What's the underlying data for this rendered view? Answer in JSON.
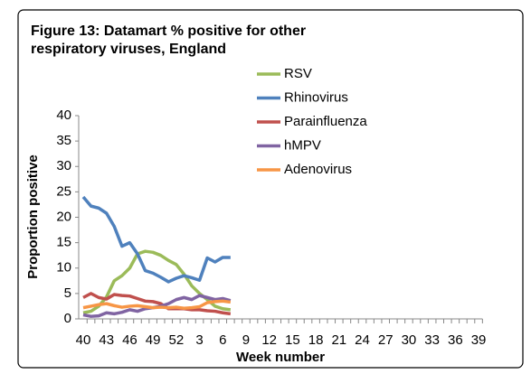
{
  "chart_data": {
    "type": "line",
    "title": [
      "Figure 13: Datamart % positive for other",
      "respiratory viruses, England"
    ],
    "y_label": "Proportion positive",
    "x_label": "Week number",
    "categories": [
      "40",
      null,
      null,
      "43",
      null,
      null,
      "46",
      null,
      null,
      "49",
      null,
      null,
      "52",
      null,
      null,
      "3",
      null,
      null,
      "6",
      null,
      null,
      "9",
      null,
      null,
      "12",
      null,
      null,
      "15",
      null,
      null,
      "18",
      null,
      null,
      "21",
      null,
      null,
      "24",
      null,
      null,
      "27",
      null,
      null,
      "30",
      null,
      null,
      "33",
      null,
      null,
      "36",
      null,
      null,
      "39"
    ],
    "ylim": [
      0,
      40
    ],
    "yticks": [
      0,
      5,
      10,
      15,
      20,
      25,
      30,
      35,
      40
    ],
    "series": [
      {
        "name": "RSV",
        "color": "#9bbb59",
        "values": [
          1.2,
          1.5,
          2.5,
          4.3,
          7.5,
          8.5,
          10,
          12.8,
          13.3,
          13.1,
          12.5,
          11.5,
          10.7,
          8.8,
          6.5,
          5,
          3.8,
          2.5,
          2,
          1.8,
          null,
          null,
          null,
          null,
          null,
          null,
          null,
          null,
          null,
          null,
          null,
          null,
          null,
          null,
          null,
          null,
          null,
          null,
          null,
          null,
          null,
          null,
          null,
          null,
          null,
          null,
          null,
          null,
          null,
          null,
          null,
          null
        ]
      },
      {
        "name": "Rhinovirus",
        "color": "#4f81bd",
        "values": [
          24,
          22.2,
          21.8,
          20.8,
          18.2,
          14.3,
          15,
          12.8,
          9.5,
          9,
          8.2,
          7.3,
          8,
          8.5,
          8.1,
          7.6,
          12,
          11.2,
          12.1,
          12.1,
          null,
          null,
          null,
          null,
          null,
          null,
          null,
          null,
          null,
          null,
          null,
          null,
          null,
          null,
          null,
          null,
          null,
          null,
          null,
          null,
          null,
          null,
          null,
          null,
          null,
          null,
          null,
          null,
          null,
          null,
          null,
          null
        ]
      },
      {
        "name": "Parainfluenza",
        "color": "#c0504d",
        "values": [
          4.2,
          5,
          4.2,
          3.9,
          4.8,
          4.6,
          4.5,
          4,
          3.5,
          3.4,
          3,
          2,
          2,
          2,
          1.8,
          1.8,
          1.6,
          1.5,
          1.2,
          1,
          null,
          null,
          null,
          null,
          null,
          null,
          null,
          null,
          null,
          null,
          null,
          null,
          null,
          null,
          null,
          null,
          null,
          null,
          null,
          null,
          null,
          null,
          null,
          null,
          null,
          null,
          null,
          null,
          null,
          null,
          null,
          null
        ]
      },
      {
        "name": "hMPV",
        "color": "#8064a2",
        "values": [
          0.8,
          0.5,
          0.6,
          1.2,
          1,
          1.3,
          1.8,
          1.5,
          2,
          2.2,
          2.5,
          3,
          3.8,
          4.2,
          3.8,
          4.6,
          4.2,
          3.8,
          4,
          3.6,
          null,
          null,
          null,
          null,
          null,
          null,
          null,
          null,
          null,
          null,
          null,
          null,
          null,
          null,
          null,
          null,
          null,
          null,
          null,
          null,
          null,
          null,
          null,
          null,
          null,
          null,
          null,
          null,
          null,
          null,
          null,
          null
        ]
      },
      {
        "name": "Adenovirus",
        "color": "#f79646",
        "values": [
          2.2,
          2.5,
          2.8,
          3,
          2.6,
          2.3,
          2.5,
          2.6,
          2.4,
          2.2,
          2.3,
          2.2,
          2.3,
          2.1,
          2.2,
          2.4,
          3.2,
          3.4,
          3.5,
          3.3,
          null,
          null,
          null,
          null,
          null,
          null,
          null,
          null,
          null,
          null,
          null,
          null,
          null,
          null,
          null,
          null,
          null,
          null,
          null,
          null,
          null,
          null,
          null,
          null,
          null,
          null,
          null,
          null,
          null,
          null,
          null,
          null
        ]
      }
    ]
  }
}
